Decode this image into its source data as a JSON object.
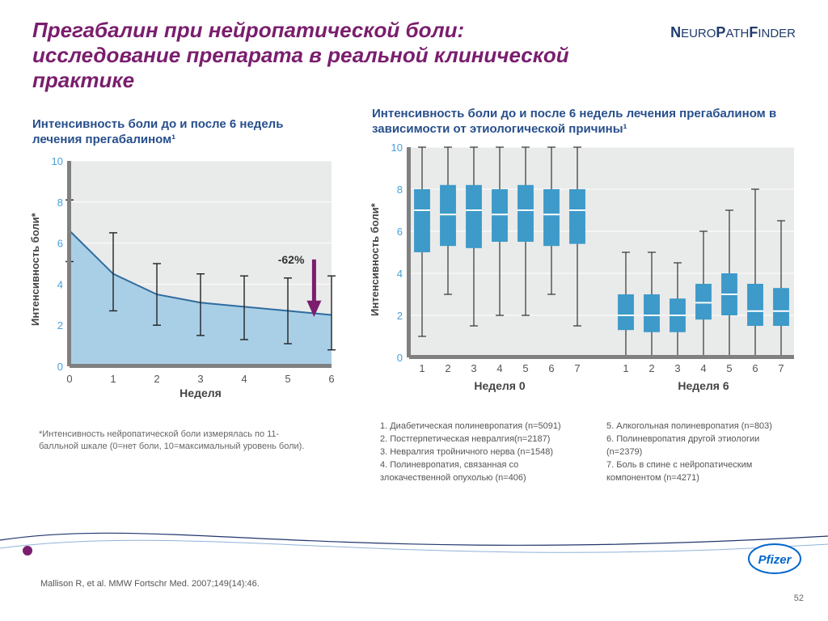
{
  "title": "Прегабалин при нейропатической боли: исследование препарата в реальной клинической практике",
  "brand": {
    "part1": "N",
    "part2": "EURO",
    "part3": "P",
    "part4": "ATH",
    "part5": "F",
    "part6": "INDER"
  },
  "left_chart": {
    "title": "Интенсивность боли до и после 6 недель лечения прегабалином¹",
    "type": "area-with-errorbars",
    "x": [
      0,
      1,
      2,
      3,
      4,
      5,
      6
    ],
    "y": [
      6.6,
      4.5,
      3.5,
      3.1,
      2.9,
      2.7,
      2.5
    ],
    "err_low": [
      5.1,
      2.7,
      2.0,
      1.5,
      1.3,
      1.1,
      0.8
    ],
    "err_high": [
      8.1,
      6.5,
      5.0,
      4.5,
      4.4,
      4.3,
      4.4
    ],
    "annotation": "-62%",
    "bg_fill": "#e9eaea",
    "area_fill": "#a9cfe6",
    "line_color": "#2e6c9e",
    "err_color": "#222222",
    "arrow_color": "#7a1e6d",
    "axis_color": "#808080",
    "tick_color": "#4aa0d8",
    "grid_color": "#ffffff",
    "xlabel": "Неделя",
    "ylabel": "Интенсивность боли*",
    "ylim": [
      0,
      10
    ],
    "ytick_step": 2,
    "tick_fontsize": 13
  },
  "right_chart": {
    "title": "Интенсивность боли до и после 6 недель лечения прегабалином в зависимости от этиологической причины¹",
    "type": "boxplot-grouped",
    "ylabel": "Интенсивность боли*",
    "ylim": [
      0,
      10
    ],
    "ytick_step": 2,
    "box_fill": "#3d9ac9",
    "median_color": "#ffffff",
    "whisker_color": "#333333",
    "axis_color": "#808080",
    "grid_color": "#ffffff",
    "bg_fill": "#e9eaea",
    "group_labels": [
      "Неделя 0",
      "Неделя 6"
    ],
    "cats": [
      "1",
      "2",
      "3",
      "4",
      "5",
      "6",
      "7"
    ],
    "week0": [
      {
        "min": 1.0,
        "q1": 5.0,
        "med": 7.0,
        "q3": 8.0,
        "max": 10.0
      },
      {
        "min": 3.0,
        "q1": 5.3,
        "med": 6.8,
        "q3": 8.2,
        "max": 10.0
      },
      {
        "min": 1.5,
        "q1": 5.2,
        "med": 7.0,
        "q3": 8.2,
        "max": 10.0
      },
      {
        "min": 2.0,
        "q1": 5.5,
        "med": 6.8,
        "q3": 8.0,
        "max": 10.0
      },
      {
        "min": 2.0,
        "q1": 5.5,
        "med": 7.0,
        "q3": 8.2,
        "max": 10.0
      },
      {
        "min": 3.0,
        "q1": 5.3,
        "med": 6.8,
        "q3": 8.0,
        "max": 10.0
      },
      {
        "min": 1.5,
        "q1": 5.4,
        "med": 7.0,
        "q3": 8.0,
        "max": 10.0
      }
    ],
    "week6": [
      {
        "min": 0.0,
        "q1": 1.3,
        "med": 2.0,
        "q3": 3.0,
        "max": 5.0
      },
      {
        "min": 0.0,
        "q1": 1.2,
        "med": 2.0,
        "q3": 3.0,
        "max": 5.0
      },
      {
        "min": 0.0,
        "q1": 1.2,
        "med": 2.0,
        "q3": 2.8,
        "max": 4.5
      },
      {
        "min": 0.0,
        "q1": 1.8,
        "med": 2.6,
        "q3": 3.5,
        "max": 6.0
      },
      {
        "min": 0.0,
        "q1": 2.0,
        "med": 3.0,
        "q3": 4.0,
        "max": 7.0
      },
      {
        "min": 0.0,
        "q1": 1.5,
        "med": 2.2,
        "q3": 3.5,
        "max": 8.0
      },
      {
        "min": 0.0,
        "q1": 1.5,
        "med": 2.2,
        "q3": 3.3,
        "max": 6.5
      }
    ],
    "tick_fontsize": 13
  },
  "footnote_left": "*Интенсивность нейропатической боли измерялась по 11-балльной шкале (0=нет боли, 10=максимальный уровень боли).",
  "legend_col1": "1. Диабетическая полиневропатия (n=5091)\n2. Постгерпетическая невралгия(n=2187)\n3. Невралгия тройничного нерва (n=1548)\n4. Полиневропатия, связанная со злокачественной опухолью (n=406)",
  "legend_col2": "5. Алкогольная полиневропатия  (n=803)\n6. Полиневропатия другой этиологии\n   (n=2379)\n7. Боль в спине с нейропатическим компонентом (n=4271)",
  "citation": "Mallison R, et al. MMW  Fortschr Med.  2007;149(14):46.",
  "page_number": "52",
  "colors": {
    "title": "#7a1e6d",
    "brand": "#1f3b6b",
    "subtitle": "#274f8c"
  }
}
